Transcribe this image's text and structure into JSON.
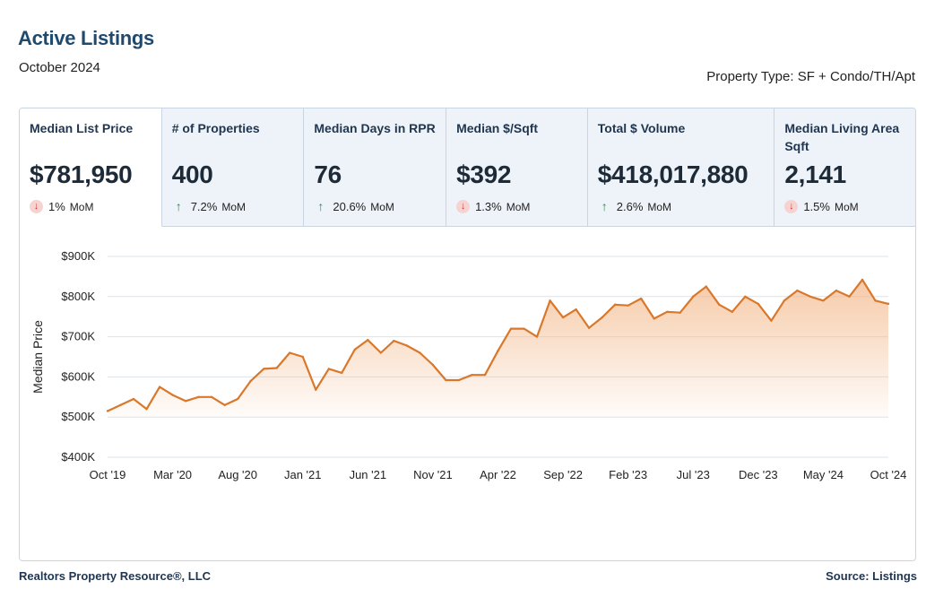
{
  "header": {
    "title": "Active Listings",
    "period": "October 2024",
    "property_type": "Property Type: SF + Condo/TH/Apt"
  },
  "metrics": [
    {
      "label": "Median List Price",
      "value": "$781,950",
      "direction": "down",
      "change": "1%",
      "unit": "MoM",
      "active": true
    },
    {
      "label": "# of Properties",
      "value": "400",
      "direction": "up",
      "change": "7.2%",
      "unit": "MoM",
      "active": false
    },
    {
      "label": "Median Days in RPR",
      "value": "76",
      "direction": "up",
      "change": "20.6%",
      "unit": "MoM",
      "active": false
    },
    {
      "label": "Median $/Sqft",
      "value": "$392",
      "direction": "down",
      "change": "1.3%",
      "unit": "MoM",
      "active": false
    },
    {
      "label": "Total $ Volume",
      "value": "$418,017,880",
      "direction": "up",
      "change": "2.6%",
      "unit": "MoM",
      "active": false
    },
    {
      "label": "Median Living Area Sqft",
      "value": "2,141",
      "direction": "down",
      "change": "1.5%",
      "unit": "MoM",
      "active": false
    }
  ],
  "colors": {
    "line": "#d9782a",
    "area_top": "#f3b98c",
    "down": "#c73a31",
    "up": "#2f8a4f",
    "title": "#1f4a6e"
  },
  "chart_data": {
    "type": "area",
    "ylabel": "Median Price",
    "ylim": [
      400000,
      900000
    ],
    "yticks": [
      400000,
      500000,
      600000,
      700000,
      800000,
      900000
    ],
    "ytick_labels": [
      "$400K",
      "$500K",
      "$600K",
      "$700K",
      "$800K",
      "$900K"
    ],
    "x_tick_labels": [
      "Oct '19",
      "Mar '20",
      "Aug '20",
      "Jan '21",
      "Jun '21",
      "Nov '21",
      "Apr '22",
      "Sep '22",
      "Feb '23",
      "Jul '23",
      "Dec '23",
      "May '24",
      "Oct '24"
    ],
    "x": [
      "Oct '19",
      "Nov '19",
      "Dec '19",
      "Jan '20",
      "Feb '20",
      "Mar '20",
      "Apr '20",
      "May '20",
      "Jun '20",
      "Jul '20",
      "Aug '20",
      "Sep '20",
      "Oct '20",
      "Nov '20",
      "Dec '20",
      "Jan '21",
      "Feb '21",
      "Mar '21",
      "Apr '21",
      "May '21",
      "Jun '21",
      "Jul '21",
      "Aug '21",
      "Sep '21",
      "Oct '21",
      "Nov '21",
      "Dec '21",
      "Jan '22",
      "Feb '22",
      "Mar '22",
      "Apr '22",
      "May '22",
      "Jun '22",
      "Jul '22",
      "Aug '22",
      "Sep '22",
      "Oct '22",
      "Nov '22",
      "Dec '22",
      "Jan '23",
      "Feb '23",
      "Mar '23",
      "Apr '23",
      "May '23",
      "Jun '23",
      "Jul '23",
      "Aug '23",
      "Sep '23",
      "Oct '23",
      "Nov '23",
      "Dec '23",
      "Jan '24",
      "Feb '24",
      "Mar '24",
      "Apr '24",
      "May '24",
      "Jun '24",
      "Jul '24",
      "Aug '24",
      "Sep '24",
      "Oct '24"
    ],
    "series": [
      {
        "values": [
          515000,
          530000,
          545000,
          520000,
          575000,
          555000,
          540000,
          550000,
          550000,
          530000,
          545000,
          590000,
          620000,
          622000,
          660000,
          650000,
          568000,
          620000,
          610000,
          668000,
          692000,
          660000,
          690000,
          678000,
          660000,
          630000,
          592000,
          592000,
          605000,
          605000,
          665000,
          720000,
          720000,
          700000,
          790000,
          748000,
          768000,
          722000,
          748000,
          780000,
          778000,
          795000,
          745000,
          762000,
          760000,
          800000,
          825000,
          780000,
          762000,
          800000,
          782000,
          740000,
          790000,
          815000,
          800000,
          790000,
          815000,
          800000,
          842000,
          790000,
          781950
        ]
      }
    ]
  }
}
